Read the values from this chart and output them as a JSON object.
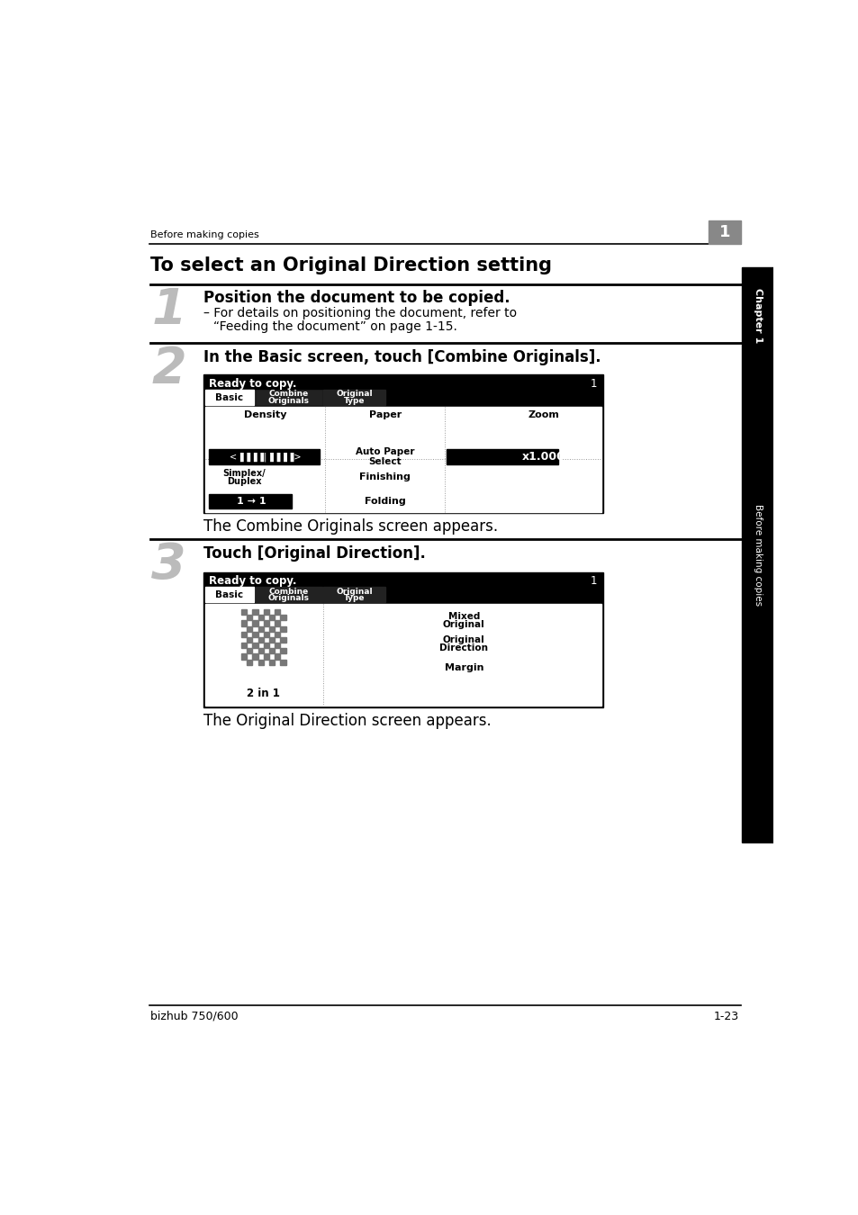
{
  "page_bg": "#ffffff",
  "header_text": "Before making copies",
  "title": "To select an Original Direction setting",
  "step1_num": "1",
  "step1_text": "Position the document to be copied.",
  "step1_sub1": "– For details on positioning the document, refer to",
  "step1_sub2": "“Feeding the document” on page 1-15.",
  "step2_num": "2",
  "step2_text": "In the Basic screen, touch [Combine Originals].",
  "step2_caption": "The Combine Originals screen appears.",
  "step3_num": "3",
  "step3_text": "Touch [Original Direction].",
  "step3_caption": "The Original Direction screen appears.",
  "footer_left": "bizhub 750/600",
  "footer_right": "1-23",
  "sidebar_top": "Chapter 1",
  "sidebar_bot": "Before making copies"
}
